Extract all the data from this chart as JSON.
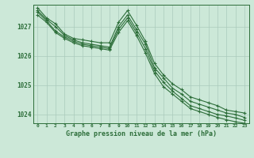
{
  "title": "Graphe pression niveau de la mer (hPa)",
  "xlabel_hours": [
    0,
    1,
    2,
    3,
    4,
    5,
    6,
    7,
    8,
    9,
    10,
    11,
    12,
    13,
    14,
    15,
    16,
    17,
    18,
    19,
    20,
    21,
    22,
    23
  ],
  "ylim": [
    1023.7,
    1027.75
  ],
  "yticks": [
    1024,
    1025,
    1026,
    1027
  ],
  "bg_color": "#cce8d8",
  "grid_color": "#aacabc",
  "line_color": "#2d6e3a",
  "line1": [
    1027.65,
    1027.3,
    1027.1,
    1026.75,
    1026.6,
    1026.55,
    1026.5,
    1026.45,
    1026.45,
    1027.15,
    1027.55,
    1027.05,
    1026.5,
    1025.75,
    1025.35,
    1025.05,
    1024.85,
    1024.6,
    1024.5,
    1024.4,
    1024.3,
    1024.15,
    1024.1,
    1024.05
  ],
  "line2": [
    1027.55,
    1027.25,
    1027.0,
    1026.7,
    1026.55,
    1026.45,
    1026.4,
    1026.35,
    1026.3,
    1027.0,
    1027.4,
    1026.9,
    1026.4,
    1025.6,
    1025.25,
    1024.9,
    1024.7,
    1024.45,
    1024.35,
    1024.25,
    1024.15,
    1024.05,
    1024.0,
    1023.9
  ],
  "line3": [
    1027.5,
    1027.2,
    1026.85,
    1026.65,
    1026.5,
    1026.4,
    1026.35,
    1026.3,
    1026.25,
    1026.9,
    1027.3,
    1026.8,
    1026.25,
    1025.5,
    1025.1,
    1024.8,
    1024.55,
    1024.3,
    1024.2,
    1024.1,
    1024.0,
    1023.95,
    1023.88,
    1023.8
  ],
  "line4": [
    1027.4,
    1027.15,
    1026.8,
    1026.6,
    1026.45,
    1026.35,
    1026.3,
    1026.25,
    1026.2,
    1026.8,
    1027.2,
    1026.7,
    1026.1,
    1025.4,
    1024.95,
    1024.7,
    1024.45,
    1024.2,
    1024.1,
    1024.0,
    1023.9,
    1023.82,
    1023.75,
    1023.7
  ]
}
